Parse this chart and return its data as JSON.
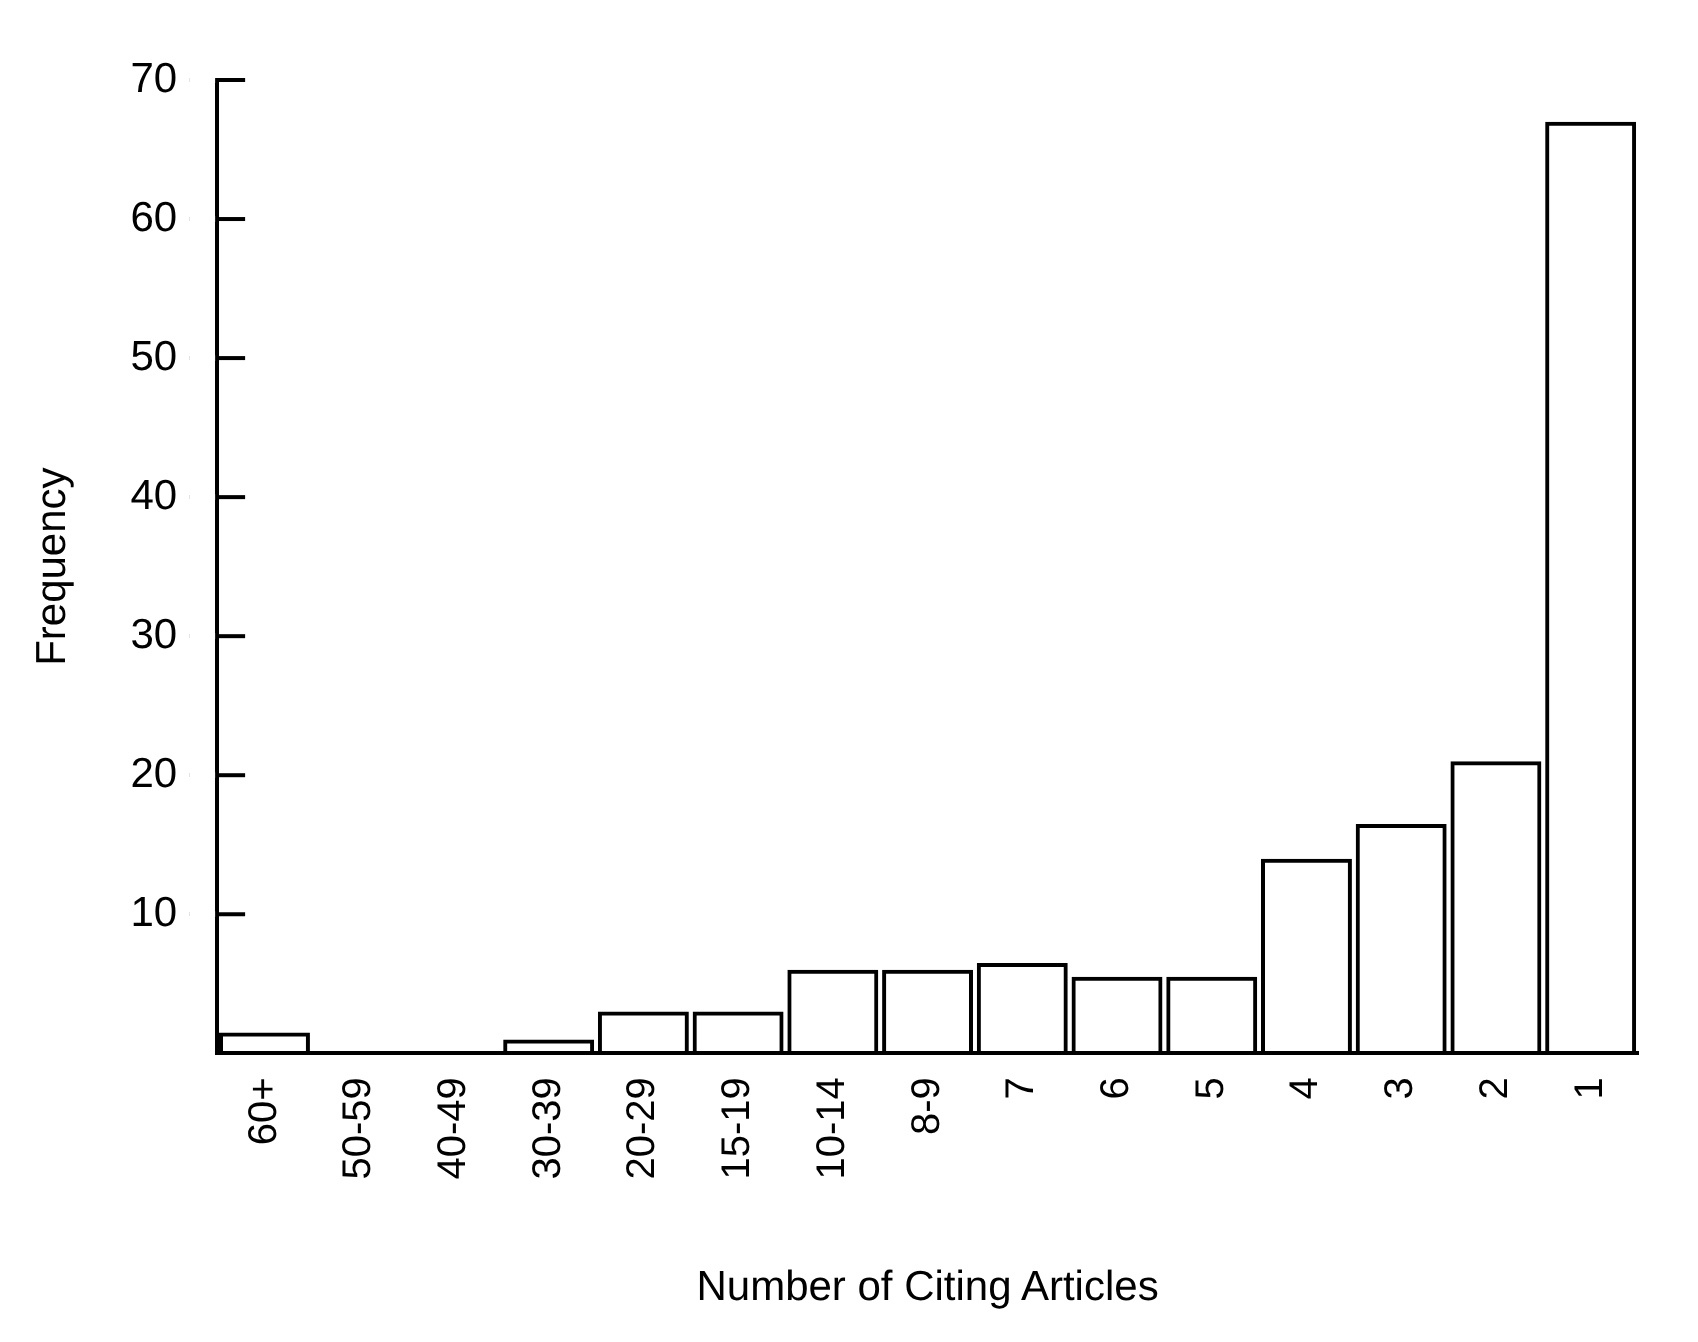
{
  "chart_data": {
    "type": "bar",
    "xlabel": "Number of Citing Articles",
    "ylabel": "Frequency",
    "categories": [
      "60+",
      "50-59",
      "40-49",
      "30-39",
      "20-29",
      "15-19",
      "10-14",
      "8-9",
      "7",
      "6",
      "5",
      "4",
      "3",
      "2",
      "1"
    ],
    "values": [
      1.5,
      0,
      0,
      1,
      3,
      3,
      6,
      6,
      6.5,
      5.5,
      5.5,
      14,
      16.5,
      21,
      67
    ],
    "color": "#000000",
    "ylim": [
      0,
      70
    ],
    "yticks": [
      10,
      20,
      30,
      40,
      50,
      60,
      70
    ],
    "grid": false,
    "legend": false
  }
}
